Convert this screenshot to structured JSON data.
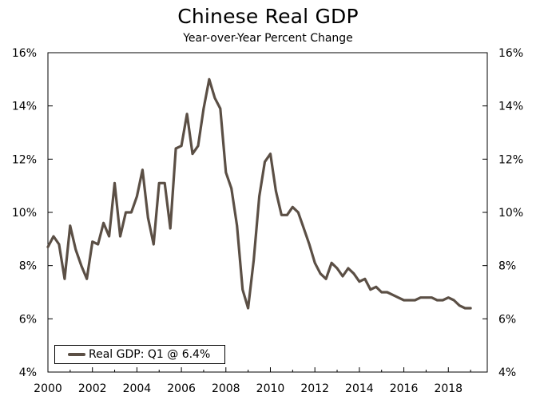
{
  "chart_data": {
    "type": "line",
    "title": "Chinese Real GDP",
    "subtitle": "Year-over-Year Percent Change",
    "xlabel": "",
    "ylabel": "",
    "xlim": [
      2000,
      2019.75
    ],
    "ylim": [
      4,
      16
    ],
    "x_ticks": [
      2000,
      2002,
      2004,
      2006,
      2008,
      2010,
      2012,
      2014,
      2016,
      2018
    ],
    "x_tick_labels": [
      "2000",
      "2002",
      "2004",
      "2006",
      "2008",
      "2010",
      "2012",
      "2014",
      "2016",
      "2018"
    ],
    "y_ticks": [
      4,
      6,
      8,
      10,
      12,
      14,
      16
    ],
    "y_tick_labels": [
      "4%",
      "6%",
      "8%",
      "10%",
      "12%",
      "14%",
      "16%"
    ],
    "y_tick_labels_right": [
      "4%",
      "6%",
      "8%",
      "10%",
      "12%",
      "14%",
      "16%"
    ],
    "grid": false,
    "legend_position": "bottom-left",
    "series": [
      {
        "name": "Real GDP: Q1 @ 6.4%",
        "color": "#5b4f45",
        "x": [
          2000.0,
          2000.25,
          2000.5,
          2000.75,
          2001.0,
          2001.25,
          2001.5,
          2001.75,
          2002.0,
          2002.25,
          2002.5,
          2002.75,
          2003.0,
          2003.25,
          2003.5,
          2003.75,
          2004.0,
          2004.25,
          2004.5,
          2004.75,
          2005.0,
          2005.25,
          2005.5,
          2005.75,
          2006.0,
          2006.25,
          2006.5,
          2006.75,
          2007.0,
          2007.25,
          2007.5,
          2007.75,
          2008.0,
          2008.25,
          2008.5,
          2008.75,
          2009.0,
          2009.25,
          2009.5,
          2009.75,
          2010.0,
          2010.25,
          2010.5,
          2010.75,
          2011.0,
          2011.25,
          2011.5,
          2011.75,
          2012.0,
          2012.25,
          2012.5,
          2012.75,
          2013.0,
          2013.25,
          2013.5,
          2013.75,
          2014.0,
          2014.25,
          2014.5,
          2014.75,
          2015.0,
          2015.25,
          2015.5,
          2015.75,
          2016.0,
          2016.25,
          2016.5,
          2016.75,
          2017.0,
          2017.25,
          2017.5,
          2017.75,
          2018.0,
          2018.25,
          2018.5,
          2018.75,
          2019.0
        ],
        "values": [
          8.7,
          9.1,
          8.8,
          7.5,
          9.5,
          8.6,
          8.0,
          7.5,
          8.9,
          8.8,
          9.6,
          9.1,
          11.1,
          9.1,
          10.0,
          10.0,
          10.6,
          11.6,
          9.8,
          8.8,
          11.1,
          11.1,
          9.4,
          12.4,
          12.5,
          13.7,
          12.2,
          12.5,
          13.9,
          15.0,
          14.3,
          13.9,
          11.5,
          10.9,
          9.5,
          7.1,
          6.4,
          8.2,
          10.6,
          11.9,
          12.2,
          10.8,
          9.9,
          9.9,
          10.2,
          10.0,
          9.4,
          8.8,
          8.1,
          7.7,
          7.5,
          8.1,
          7.9,
          7.6,
          7.9,
          7.7,
          7.4,
          7.5,
          7.1,
          7.2,
          7.0,
          7.0,
          6.9,
          6.8,
          6.7,
          6.7,
          6.7,
          6.8,
          6.8,
          6.8,
          6.7,
          6.7,
          6.8,
          6.7,
          6.5,
          6.4,
          6.4
        ]
      }
    ]
  }
}
